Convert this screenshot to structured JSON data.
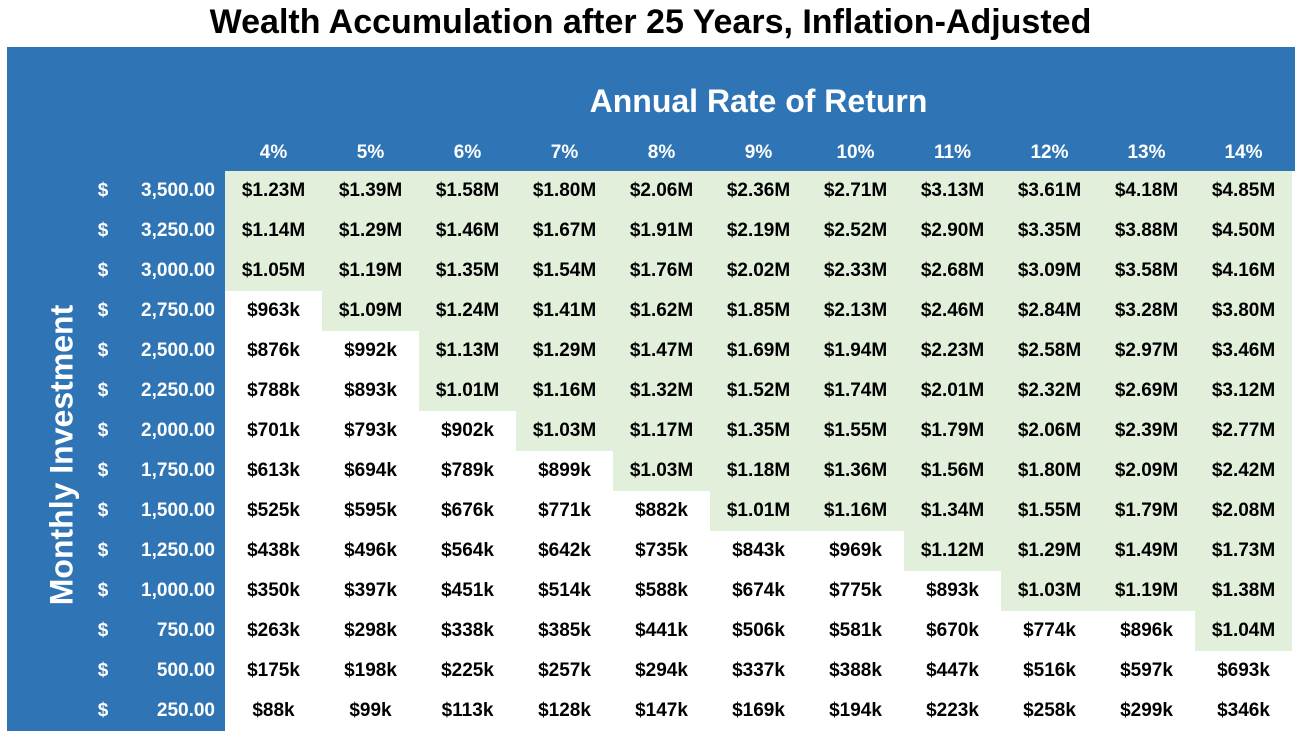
{
  "title": "Wealth Accumulation after 25 Years, Inflation-Adjusted",
  "column_header": "Annual Rate of Return",
  "row_header": "Monthly Investment",
  "table": {
    "columns": [
      "4%",
      "5%",
      "6%",
      "7%",
      "8%",
      "9%",
      "10%",
      "11%",
      "12%",
      "13%",
      "14%"
    ],
    "rows": [
      {
        "currency": "$",
        "amount": "3,500.00",
        "cells": [
          "$1.23M",
          "$1.39M",
          "$1.58M",
          "$1.80M",
          "$2.06M",
          "$2.36M",
          "$2.71M",
          "$3.13M",
          "$3.61M",
          "$4.18M",
          "$4.85M"
        ]
      },
      {
        "currency": "$",
        "amount": "3,250.00",
        "cells": [
          "$1.14M",
          "$1.29M",
          "$1.46M",
          "$1.67M",
          "$1.91M",
          "$2.19M",
          "$2.52M",
          "$2.90M",
          "$3.35M",
          "$3.88M",
          "$4.50M"
        ]
      },
      {
        "currency": "$",
        "amount": "3,000.00",
        "cells": [
          "$1.05M",
          "$1.19M",
          "$1.35M",
          "$1.54M",
          "$1.76M",
          "$2.02M",
          "$2.33M",
          "$2.68M",
          "$3.09M",
          "$3.58M",
          "$4.16M"
        ]
      },
      {
        "currency": "$",
        "amount": "2,750.00",
        "cells": [
          "$963k",
          "$1.09M",
          "$1.24M",
          "$1.41M",
          "$1.62M",
          "$1.85M",
          "$2.13M",
          "$2.46M",
          "$2.84M",
          "$3.28M",
          "$3.80M"
        ]
      },
      {
        "currency": "$",
        "amount": "2,500.00",
        "cells": [
          "$876k",
          "$992k",
          "$1.13M",
          "$1.29M",
          "$1.47M",
          "$1.69M",
          "$1.94M",
          "$2.23M",
          "$2.58M",
          "$2.97M",
          "$3.46M"
        ]
      },
      {
        "currency": "$",
        "amount": "2,250.00",
        "cells": [
          "$788k",
          "$893k",
          "$1.01M",
          "$1.16M",
          "$1.32M",
          "$1.52M",
          "$1.74M",
          "$2.01M",
          "$2.32M",
          "$2.69M",
          "$3.12M"
        ]
      },
      {
        "currency": "$",
        "amount": "2,000.00",
        "cells": [
          "$701k",
          "$793k",
          "$902k",
          "$1.03M",
          "$1.17M",
          "$1.35M",
          "$1.55M",
          "$1.79M",
          "$2.06M",
          "$2.39M",
          "$2.77M"
        ]
      },
      {
        "currency": "$",
        "amount": "1,750.00",
        "cells": [
          "$613k",
          "$694k",
          "$789k",
          "$899k",
          "$1.03M",
          "$1.18M",
          "$1.36M",
          "$1.56M",
          "$1.80M",
          "$2.09M",
          "$2.42M"
        ]
      },
      {
        "currency": "$",
        "amount": "1,500.00",
        "cells": [
          "$525k",
          "$595k",
          "$676k",
          "$771k",
          "$882k",
          "$1.01M",
          "$1.16M",
          "$1.34M",
          "$1.55M",
          "$1.79M",
          "$2.08M"
        ]
      },
      {
        "currency": "$",
        "amount": "1,250.00",
        "cells": [
          "$438k",
          "$496k",
          "$564k",
          "$642k",
          "$735k",
          "$843k",
          "$969k",
          "$1.12M",
          "$1.29M",
          "$1.49M",
          "$1.73M"
        ]
      },
      {
        "currency": "$",
        "amount": "1,000.00",
        "cells": [
          "$350k",
          "$397k",
          "$451k",
          "$514k",
          "$588k",
          "$674k",
          "$775k",
          "$893k",
          "$1.03M",
          "$1.19M",
          "$1.38M"
        ]
      },
      {
        "currency": "$",
        "amount": "750.00",
        "cells": [
          "$263k",
          "$298k",
          "$338k",
          "$385k",
          "$441k",
          "$506k",
          "$581k",
          "$670k",
          "$774k",
          "$896k",
          "$1.04M"
        ]
      },
      {
        "currency": "$",
        "amount": "500.00",
        "cells": [
          "$175k",
          "$198k",
          "$225k",
          "$257k",
          "$294k",
          "$337k",
          "$388k",
          "$447k",
          "$516k",
          "$597k",
          "$693k"
        ]
      },
      {
        "currency": "$",
        "amount": "250.00",
        "cells": [
          "$88k",
          "$99k",
          "$113k",
          "$128k",
          "$147k",
          "$169k",
          "$194k",
          "$223k",
          "$258k",
          "$299k",
          "$346k"
        ]
      }
    ]
  }
}
